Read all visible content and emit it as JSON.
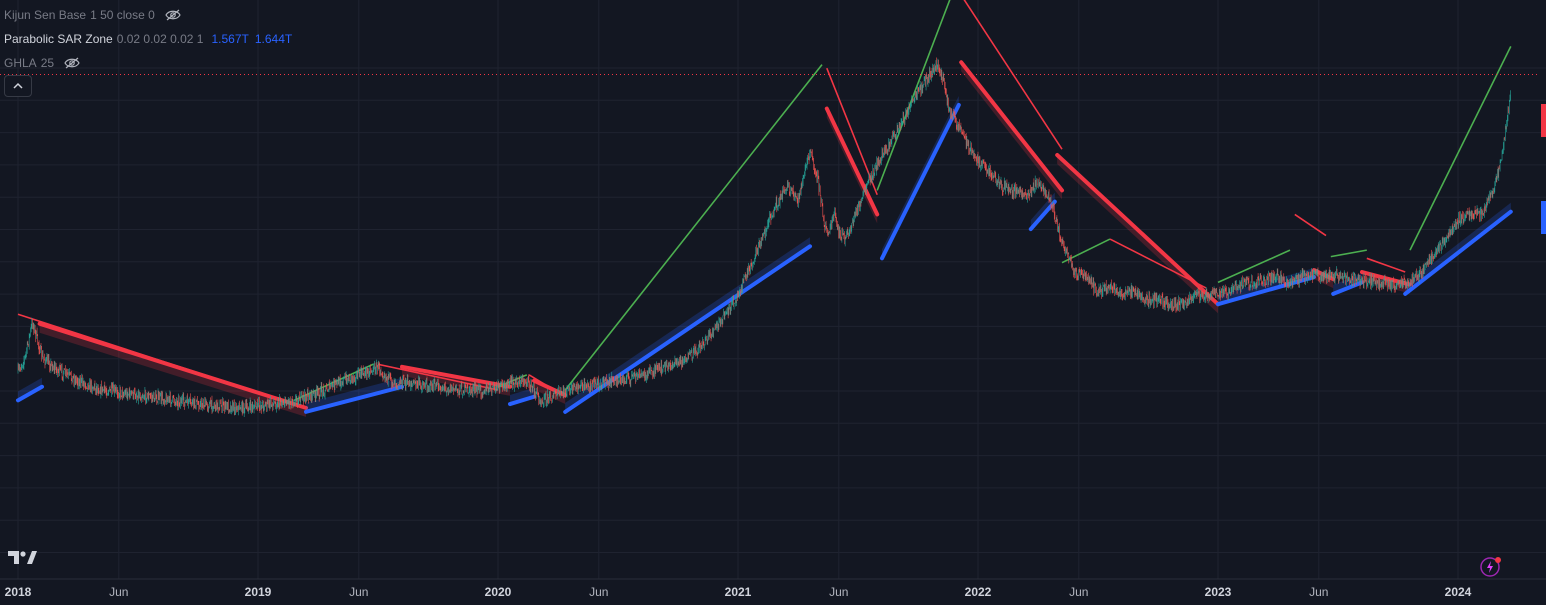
{
  "legend": {
    "kijun": {
      "name": "Kijun Sen Base",
      "params": "1 50 close 0"
    },
    "psar": {
      "name": "Parabolic SAR Zone",
      "params": "0.02 0.02 0.02 1",
      "value1": "1.567T",
      "value2": "1.644T"
    },
    "ghla": {
      "name": "GHLA",
      "params": "25"
    }
  },
  "icons": {
    "eye": "eye-crossed-icon",
    "collapse": "chevron-up-icon",
    "logo": "tradingview-logo",
    "bolt": "lightning-icon"
  },
  "colors": {
    "background": "#131722",
    "grid": "#1f2330",
    "up": "#26a69a",
    "down": "#ef5350",
    "sar_up": "#2962ff",
    "sar_down": "#f23645",
    "trend_up": "#4caf50",
    "trend_down": "#f23645"
  },
  "chart_data": {
    "type": "line",
    "x_tick_labels": [
      "2018",
      "Jun",
      "2019",
      "Jun",
      "2020",
      "Jun",
      "2021",
      "Jun",
      "2022",
      "Jun",
      "2023",
      "Jun",
      "2024"
    ],
    "x_range": [
      2018.0,
      2024.35
    ],
    "y_scale": "log",
    "price": {
      "x": [
        2018.0,
        2018.03,
        2018.06,
        2018.1,
        2018.16,
        2018.25,
        2018.35,
        2018.45,
        2018.55,
        2018.65,
        2018.75,
        2018.85,
        2018.95,
        2019.05,
        2019.15,
        2019.25,
        2019.35,
        2019.45,
        2019.5,
        2019.55,
        2019.65,
        2019.75,
        2019.85,
        2019.95,
        2020.05,
        2020.12,
        2020.18,
        2020.22,
        2020.3,
        2020.4,
        2020.5,
        2020.6,
        2020.7,
        2020.8,
        2020.9,
        2020.95,
        2021.0,
        2021.05,
        2021.1,
        2021.15,
        2021.2,
        2021.25,
        2021.3,
        2021.33,
        2021.36,
        2021.38,
        2021.4,
        2021.42,
        2021.45,
        2021.5,
        2021.55,
        2021.6,
        2021.65,
        2021.7,
        2021.75,
        2021.8,
        2021.83,
        2021.86,
        2021.88,
        2021.9,
        2021.93,
        2021.96,
        2022.0,
        2022.05,
        2022.1,
        2022.15,
        2022.2,
        2022.25,
        2022.3,
        2022.35,
        2022.4,
        2022.45,
        2022.5,
        2022.55,
        2022.6,
        2022.65,
        2022.7,
        2022.75,
        2022.8,
        2022.85,
        2022.9,
        2022.95,
        2023.0,
        2023.05,
        2023.1,
        2023.15,
        2023.2,
        2023.25,
        2023.3,
        2023.35,
        2023.4,
        2023.45,
        2023.5,
        2023.55,
        2023.6,
        2023.65,
        2023.7,
        2023.75,
        2023.8,
        2023.85,
        2023.9,
        2023.95,
        2024.0,
        2024.05,
        2024.1,
        2024.15,
        2024.18,
        2024.2,
        2024.22
      ],
      "y": [
        0.36,
        0.42,
        0.6,
        0.42,
        0.37,
        0.33,
        0.3,
        0.29,
        0.28,
        0.27,
        0.26,
        0.255,
        0.25,
        0.26,
        0.27,
        0.29,
        0.33,
        0.36,
        0.38,
        0.33,
        0.32,
        0.31,
        0.3,
        0.3,
        0.32,
        0.33,
        0.27,
        0.28,
        0.3,
        0.32,
        0.33,
        0.35,
        0.38,
        0.42,
        0.55,
        0.65,
        0.8,
        1.05,
        1.4,
        1.9,
        2.4,
        2.1,
        3.4,
        2.7,
        1.6,
        1.5,
        1.8,
        1.5,
        1.4,
        1.9,
        2.6,
        3.3,
        4.0,
        5.0,
        6.2,
        7.5,
        8.3,
        6.8,
        5.2,
        4.8,
        4.3,
        3.6,
        3.1,
        2.8,
        2.4,
        2.3,
        2.2,
        2.5,
        2.1,
        1.35,
        1.0,
        0.95,
        0.82,
        0.85,
        0.8,
        0.82,
        0.75,
        0.75,
        0.72,
        0.72,
        0.78,
        0.8,
        0.8,
        0.82,
        0.88,
        0.9,
        0.92,
        0.95,
        0.88,
        0.95,
        0.98,
        0.95,
        0.96,
        0.93,
        0.92,
        0.9,
        0.88,
        0.88,
        0.9,
        1.0,
        1.2,
        1.4,
        1.7,
        1.8,
        1.8,
        2.3,
        3.2,
        4.5,
        6.2
      ]
    },
    "sar_zones": [
      {
        "direction": "up",
        "x": [
          2018.0,
          2018.1
        ],
        "y": [
          0.27,
          0.31
        ]
      },
      {
        "direction": "down",
        "x": [
          2018.09,
          2019.2
        ],
        "y": [
          0.59,
          0.25
        ]
      },
      {
        "direction": "up",
        "x": [
          2019.2,
          2019.6
        ],
        "y": [
          0.24,
          0.31
        ]
      },
      {
        "direction": "down",
        "x": [
          2019.6,
          2020.05
        ],
        "y": [
          0.38,
          0.31
        ]
      },
      {
        "direction": "up",
        "x": [
          2020.05,
          2020.15
        ],
        "y": [
          0.26,
          0.28
        ]
      },
      {
        "direction": "down",
        "x": [
          2020.15,
          2020.28
        ],
        "y": [
          0.33,
          0.285
        ]
      },
      {
        "direction": "up",
        "x": [
          2020.28,
          2021.3
        ],
        "y": [
          0.24,
          1.3
        ]
      },
      {
        "direction": "down",
        "x": [
          2021.37,
          2021.58
        ],
        "y": [
          5.3,
          1.8
        ]
      },
      {
        "direction": "up",
        "x": [
          2021.6,
          2021.92
        ],
        "y": [
          1.15,
          5.5
        ]
      },
      {
        "direction": "down",
        "x": [
          2021.93,
          2022.35
        ],
        "y": [
          8.5,
          2.3
        ]
      },
      {
        "direction": "up",
        "x": [
          2022.22,
          2022.32
        ],
        "y": [
          1.55,
          2.05
        ]
      },
      {
        "direction": "down",
        "x": [
          2022.33,
          2023.0
        ],
        "y": [
          3.3,
          0.72
        ]
      },
      {
        "direction": "up",
        "x": [
          2023.0,
          2023.4
        ],
        "y": [
          0.72,
          0.95
        ]
      },
      {
        "direction": "down",
        "x": [
          2023.4,
          2023.48
        ],
        "y": [
          1.02,
          0.93
        ]
      },
      {
        "direction": "up",
        "x": [
          2023.48,
          2023.6
        ],
        "y": [
          0.8,
          0.9
        ]
      },
      {
        "direction": "down",
        "x": [
          2023.6,
          2023.8
        ],
        "y": [
          1.0,
          0.88
        ]
      },
      {
        "direction": "up",
        "x": [
          2023.78,
          2024.22
        ],
        "y": [
          0.8,
          1.85
        ]
      }
    ],
    "trend_lines": [
      {
        "color": "down",
        "x": [
          2018.0,
          2019.2
        ],
        "y": [
          0.65,
          0.25
        ]
      },
      {
        "color": "up",
        "x": [
          2019.15,
          2019.48
        ],
        "y": [
          0.27,
          0.39
        ]
      },
      {
        "color": "down",
        "x": [
          2019.5,
          2020.0
        ],
        "y": [
          0.39,
          0.3
        ]
      },
      {
        "color": "up",
        "x": [
          2020.0,
          2020.12
        ],
        "y": [
          0.31,
          0.35
        ]
      },
      {
        "color": "down",
        "x": [
          2020.13,
          2020.28
        ],
        "y": [
          0.35,
          0.28
        ]
      },
      {
        "color": "up",
        "x": [
          2020.28,
          2021.35
        ],
        "y": [
          0.3,
          8.3
        ]
      },
      {
        "color": "down",
        "x": [
          2021.37,
          2021.58
        ],
        "y": [
          8.0,
          2.2
        ]
      },
      {
        "color": "up",
        "x": [
          2021.58,
          2021.9
        ],
        "y": [
          2.3,
          18.0
        ]
      },
      {
        "color": "down",
        "x": [
          2021.92,
          2022.35
        ],
        "y": [
          17.5,
          3.5
        ]
      },
      {
        "color": "up",
        "x": [
          2022.35,
          2022.55
        ],
        "y": [
          1.1,
          1.4
        ]
      },
      {
        "color": "down",
        "x": [
          2022.55,
          2022.95
        ],
        "y": [
          1.4,
          0.85
        ]
      },
      {
        "color": "up",
        "x": [
          2023.0,
          2023.3
        ],
        "y": [
          0.9,
          1.25
        ]
      },
      {
        "color": "down",
        "x": [
          2023.32,
          2023.45
        ],
        "y": [
          1.8,
          1.45
        ]
      },
      {
        "color": "up",
        "x": [
          2023.47,
          2023.62
        ],
        "y": [
          1.17,
          1.25
        ]
      },
      {
        "color": "down",
        "x": [
          2023.62,
          2023.78
        ],
        "y": [
          1.15,
          1.0
        ]
      },
      {
        "color": "up",
        "x": [
          2023.8,
          2024.22
        ],
        "y": [
          1.25,
          10.0
        ]
      }
    ],
    "last_price_line": 7.5
  }
}
